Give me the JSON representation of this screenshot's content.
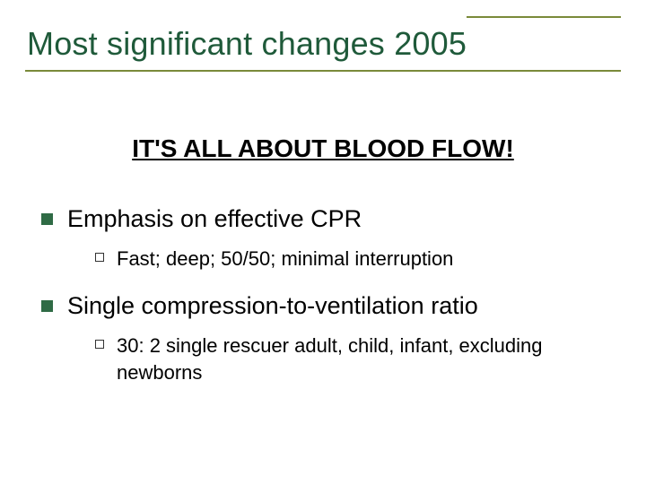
{
  "title": "Most significant changes 2005",
  "subhead": "IT'S ALL ABOUT BLOOD FLOW!",
  "colors": {
    "title_text": "#1f5a3a",
    "rule": "#7a8a3a",
    "l1_marker": "#2f6b45",
    "l2_marker_border": "#333333",
    "body_text": "#000000",
    "background": "#ffffff"
  },
  "typography": {
    "title_fontsize": 36,
    "subhead_fontsize": 28,
    "l1_fontsize": 27,
    "l2_fontsize": 22,
    "font_family": "Arial"
  },
  "bullets": [
    {
      "text": "Emphasis on effective CPR",
      "sub": [
        {
          "text": "Fast; deep; 50/50; minimal interruption"
        }
      ]
    },
    {
      "text": "Single compression-to-ventilation ratio",
      "sub": [
        {
          "text": "30: 2 single rescuer adult, child, infant, excluding newborns"
        }
      ]
    }
  ]
}
